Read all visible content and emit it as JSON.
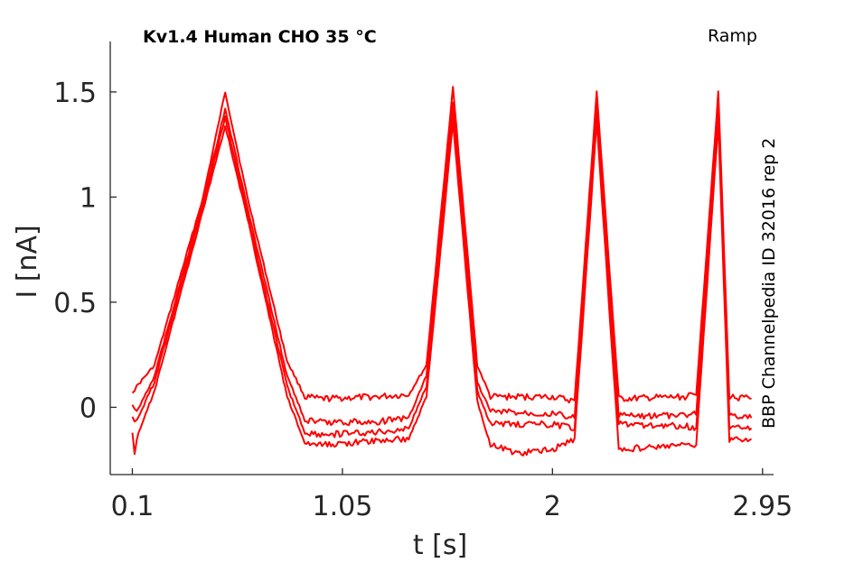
{
  "chart_data": {
    "type": "line",
    "title": "Kv1.4  Human  CHO  35 °C",
    "subtitle": "Ramp",
    "side_label": "BBP Channelpedia ID 32016 rep 2",
    "xlabel": "t [s]",
    "ylabel": "I [nA]",
    "xlim": [
      0.0,
      3.0
    ],
    "ylim": [
      -0.32,
      1.74
    ],
    "xticks": [
      0.1,
      1.05,
      2,
      2.95
    ],
    "xtick_labels": [
      "0.1",
      "1.05",
      "2",
      "2.95"
    ],
    "yticks": [
      0,
      0.5,
      1,
      1.5
    ],
    "ytick_labels": [
      "0",
      "0.5",
      "1",
      "1.5"
    ],
    "grid": false,
    "line_color": "#ff0000",
    "series": [
      {
        "values": [
          [
            0.1,
            0.08
          ],
          [
            0.12,
            0.1
          ],
          [
            0.2,
            0.2
          ],
          [
            0.42,
            1.0
          ],
          [
            0.52,
            1.5
          ],
          [
            0.62,
            1.0
          ],
          [
            0.8,
            0.22
          ],
          [
            0.88,
            0.05
          ],
          [
            0.95,
            0.04
          ],
          [
            1.2,
            0.05
          ],
          [
            1.35,
            0.06
          ],
          [
            1.43,
            0.2
          ],
          [
            1.55,
            1.52
          ],
          [
            1.66,
            0.2
          ],
          [
            1.72,
            0.05
          ],
          [
            2.0,
            0.05
          ],
          [
            2.1,
            0.03
          ],
          [
            2.2,
            1.5
          ],
          [
            2.3,
            0.04
          ],
          [
            2.6,
            0.05
          ],
          [
            2.65,
            0.06
          ],
          [
            2.75,
            1.5
          ],
          [
            2.8,
            0.05
          ],
          [
            2.9,
            0.04
          ]
        ]
      },
      {
        "values": [
          [
            0.1,
            0.0
          ],
          [
            0.12,
            -0.02
          ],
          [
            0.2,
            0.15
          ],
          [
            0.42,
            0.98
          ],
          [
            0.52,
            1.42
          ],
          [
            0.62,
            0.95
          ],
          [
            0.8,
            0.15
          ],
          [
            0.88,
            -0.06
          ],
          [
            0.95,
            -0.07
          ],
          [
            1.2,
            -0.07
          ],
          [
            1.35,
            -0.05
          ],
          [
            1.43,
            0.15
          ],
          [
            1.55,
            1.45
          ],
          [
            1.66,
            0.12
          ],
          [
            1.72,
            -0.02
          ],
          [
            2.0,
            -0.03
          ],
          [
            2.1,
            -0.05
          ],
          [
            2.2,
            1.45
          ],
          [
            2.3,
            -0.04
          ],
          [
            2.6,
            -0.04
          ],
          [
            2.65,
            -0.03
          ],
          [
            2.75,
            1.45
          ],
          [
            2.8,
            -0.03
          ],
          [
            2.9,
            -0.05
          ]
        ]
      },
      {
        "values": [
          [
            0.1,
            -0.05
          ],
          [
            0.12,
            -0.06
          ],
          [
            0.2,
            0.12
          ],
          [
            0.42,
            0.96
          ],
          [
            0.52,
            1.38
          ],
          [
            0.62,
            0.92
          ],
          [
            0.8,
            0.1
          ],
          [
            0.88,
            -0.12
          ],
          [
            0.95,
            -0.13
          ],
          [
            1.2,
            -0.12
          ],
          [
            1.35,
            -0.1
          ],
          [
            1.43,
            0.1
          ],
          [
            1.55,
            1.4
          ],
          [
            1.66,
            0.08
          ],
          [
            1.72,
            -0.08
          ],
          [
            2.0,
            -0.08
          ],
          [
            2.1,
            -0.1
          ],
          [
            2.2,
            1.4
          ],
          [
            2.3,
            -0.08
          ],
          [
            2.6,
            -0.09
          ],
          [
            2.65,
            -0.1
          ],
          [
            2.75,
            1.4
          ],
          [
            2.8,
            -0.1
          ],
          [
            2.9,
            -0.1
          ]
        ]
      },
      {
        "values": [
          [
            0.1,
            -0.12
          ],
          [
            0.11,
            -0.22
          ],
          [
            0.12,
            -0.15
          ],
          [
            0.2,
            0.08
          ],
          [
            0.42,
            0.94
          ],
          [
            0.52,
            1.34
          ],
          [
            0.62,
            0.9
          ],
          [
            0.8,
            0.05
          ],
          [
            0.88,
            -0.17
          ],
          [
            0.95,
            -0.18
          ],
          [
            1.2,
            -0.16
          ],
          [
            1.35,
            -0.15
          ],
          [
            1.43,
            0.05
          ],
          [
            1.55,
            1.36
          ],
          [
            1.66,
            0.03
          ],
          [
            1.72,
            -0.18
          ],
          [
            1.85,
            -0.22
          ],
          [
            2.0,
            -0.2
          ],
          [
            2.1,
            -0.15
          ],
          [
            2.2,
            1.36
          ],
          [
            2.3,
            -0.2
          ],
          [
            2.6,
            -0.18
          ],
          [
            2.65,
            -0.18
          ],
          [
            2.75,
            1.36
          ],
          [
            2.8,
            -0.16
          ],
          [
            2.9,
            -0.15
          ]
        ]
      }
    ]
  }
}
